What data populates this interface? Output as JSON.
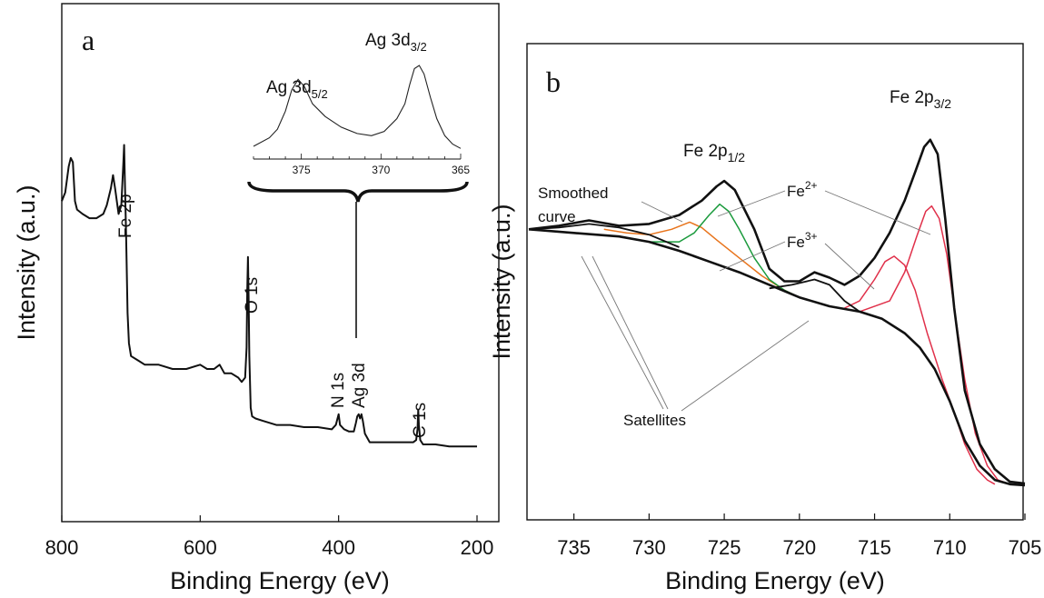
{
  "chart_data": [
    {
      "panel": "a",
      "type": "line",
      "xlabel": "Binding Energy (eV)",
      "ylabel": "Intensity (a.u.)",
      "xlim": [
        800,
        200
      ],
      "xticks": [
        "800",
        "600",
        "400",
        "200"
      ],
      "x_reversed": true,
      "grid": false,
      "series": [
        {
          "points": [
            [
              800,
              0.66
            ],
            [
              795,
              0.68
            ],
            [
              790,
              0.74
            ],
            [
              787,
              0.76
            ],
            [
              784,
              0.75
            ],
            [
              781,
              0.66
            ],
            [
              778,
              0.64
            ],
            [
              770,
              0.63
            ],
            [
              760,
              0.62
            ],
            [
              750,
              0.62
            ],
            [
              740,
              0.63
            ],
            [
              735,
              0.65
            ],
            [
              729,
              0.69
            ],
            [
              726,
              0.72
            ],
            [
              723,
              0.69
            ],
            [
              718,
              0.63
            ],
            [
              714,
              0.65
            ],
            [
              711,
              0.75
            ],
            [
              710,
              0.79
            ],
            [
              709,
              0.72
            ],
            [
              707,
              0.58
            ],
            [
              705,
              0.4
            ],
            [
              703,
              0.33
            ],
            [
              700,
              0.3
            ],
            [
              690,
              0.29
            ],
            [
              680,
              0.28
            ],
            [
              660,
              0.28
            ],
            [
              640,
              0.27
            ],
            [
              620,
              0.27
            ],
            [
              600,
              0.28
            ],
            [
              590,
              0.27
            ],
            [
              580,
              0.27
            ],
            [
              572,
              0.28
            ],
            [
              565,
              0.26
            ],
            [
              555,
              0.26
            ],
            [
              545,
              0.25
            ],
            [
              540,
              0.24
            ],
            [
              535,
              0.25
            ],
            [
              533,
              0.32
            ],
            [
              532,
              0.45
            ],
            [
              531,
              0.53
            ],
            [
              530,
              0.44
            ],
            [
              529,
              0.3
            ],
            [
              527,
              0.18
            ],
            [
              525,
              0.16
            ],
            [
              520,
              0.155
            ],
            [
              510,
              0.15
            ],
            [
              490,
              0.14
            ],
            [
              470,
              0.14
            ],
            [
              450,
              0.135
            ],
            [
              430,
              0.135
            ],
            [
              410,
              0.13
            ],
            [
              404,
              0.14
            ],
            [
              400,
              0.165
            ],
            [
              398,
              0.14
            ],
            [
              392,
              0.13
            ],
            [
              385,
              0.125
            ],
            [
              378,
              0.125
            ],
            [
              375,
              0.145
            ],
            [
              373,
              0.16
            ],
            [
              371,
              0.165
            ],
            [
              369,
              0.155
            ],
            [
              367,
              0.165
            ],
            [
              365,
              0.15
            ],
            [
              362,
              0.12
            ],
            [
              355,
              0.1
            ],
            [
              340,
              0.1
            ],
            [
              320,
              0.1
            ],
            [
              300,
              0.1
            ],
            [
              292,
              0.1
            ],
            [
              288,
              0.105
            ],
            [
              286,
              0.13
            ],
            [
              285,
              0.175
            ],
            [
              284,
              0.14
            ],
            [
              282,
              0.105
            ],
            [
              278,
              0.095
            ],
            [
              260,
              0.095
            ],
            [
              240,
              0.09
            ],
            [
              220,
              0.09
            ],
            [
              200,
              0.09
            ]
          ]
        }
      ],
      "annotations": [
        "Fe 2p",
        "O 1s",
        "N 1s",
        "Ag 3d",
        "C 1s"
      ],
      "inset": {
        "type": "line",
        "xlim": [
          378,
          365
        ],
        "xticks": [
          "375",
          "370",
          "365"
        ],
        "labels": [
          "Ag 3d 5/2",
          "Ag 3d 3/2"
        ],
        "points": [
          [
            378,
            0.12
          ],
          [
            377,
            0.2
          ],
          [
            376.5,
            0.28
          ],
          [
            376,
            0.45
          ],
          [
            375.6,
            0.65
          ],
          [
            375.2,
            0.75
          ],
          [
            374.8,
            0.68
          ],
          [
            374.3,
            0.52
          ],
          [
            373.5,
            0.4
          ],
          [
            372.5,
            0.3
          ],
          [
            371.5,
            0.24
          ],
          [
            370.6,
            0.22
          ],
          [
            369.8,
            0.26
          ],
          [
            369,
            0.38
          ],
          [
            368.5,
            0.52
          ],
          [
            368.2,
            0.7
          ],
          [
            367.9,
            0.85
          ],
          [
            367.6,
            0.88
          ],
          [
            367.3,
            0.8
          ],
          [
            366.9,
            0.58
          ],
          [
            366.5,
            0.38
          ],
          [
            366,
            0.22
          ],
          [
            365.5,
            0.14
          ],
          [
            365,
            0.1
          ]
        ]
      }
    },
    {
      "panel": "b",
      "type": "line",
      "xlabel": "Binding Energy (eV)",
      "ylabel": "Intensity (a.u.)",
      "xlim": [
        738,
        705
      ],
      "xticks": [
        "735",
        "730",
        "725",
        "720",
        "715",
        "710",
        "705"
      ],
      "x_reversed": true,
      "grid": false,
      "annotations": [
        "Fe 2p 1/2",
        "Fe 2p 3/2",
        "Smoothed curve",
        "Fe2+",
        "Fe3+",
        "Satellites"
      ],
      "series": [
        {
          "id": "smoothed",
          "color": "#111111",
          "points": [
            [
              738,
              0.72
            ],
            [
              736,
              0.73
            ],
            [
              734,
              0.745
            ],
            [
              732,
              0.73
            ],
            [
              730,
              0.735
            ],
            [
              728,
              0.76
            ],
            [
              726.5,
              0.8
            ],
            [
              725.5,
              0.84
            ],
            [
              725,
              0.855
            ],
            [
              724.3,
              0.83
            ],
            [
              723,
              0.72
            ],
            [
              722,
              0.61
            ],
            [
              721,
              0.575
            ],
            [
              720,
              0.575
            ],
            [
              719,
              0.6
            ],
            [
              718,
              0.585
            ],
            [
              717,
              0.565
            ],
            [
              716,
              0.59
            ],
            [
              715,
              0.64
            ],
            [
              714,
              0.71
            ],
            [
              713,
              0.8
            ],
            [
              712.3,
              0.88
            ],
            [
              711.7,
              0.95
            ],
            [
              711.3,
              0.97
            ],
            [
              710.8,
              0.93
            ],
            [
              710.3,
              0.75
            ],
            [
              709.7,
              0.5
            ],
            [
              709,
              0.27
            ],
            [
              708,
              0.12
            ],
            [
              707,
              0.05
            ],
            [
              706,
              0.015
            ],
            [
              705,
              0.01
            ]
          ]
        },
        {
          "id": "background",
          "color": "#111111",
          "points": [
            [
              738,
              0.72
            ],
            [
              735,
              0.71
            ],
            [
              732,
              0.7
            ],
            [
              730,
              0.685
            ],
            [
              728,
              0.66
            ],
            [
              726,
              0.63
            ],
            [
              724,
              0.6
            ],
            [
              722,
              0.565
            ],
            [
              720,
              0.53
            ],
            [
              718,
              0.505
            ],
            [
              716,
              0.49
            ],
            [
              714.5,
              0.47
            ],
            [
              713,
              0.43
            ],
            [
              712,
              0.39
            ],
            [
              711,
              0.33
            ],
            [
              710,
              0.24
            ],
            [
              709,
              0.13
            ],
            [
              708,
              0.06
            ],
            [
              707,
              0.02
            ],
            [
              706,
              0.008
            ],
            [
              705,
              0.005
            ]
          ]
        },
        {
          "id": "Fe2+",
          "color": "#1a9a3c",
          "points": [
            [
              730,
              0.685
            ],
            [
              728,
              0.685
            ],
            [
              727,
              0.71
            ],
            [
              726,
              0.76
            ],
            [
              725.3,
              0.79
            ],
            [
              724.7,
              0.77
            ],
            [
              724,
              0.72
            ],
            [
              723,
              0.64
            ],
            [
              722,
              0.58
            ],
            [
              721,
              0.55
            ],
            [
              720,
              0.53
            ]
          ]
        },
        {
          "id": "Fe3+",
          "color": "#e8741c",
          "points": [
            [
              733,
              0.72
            ],
            [
              731.5,
              0.71
            ],
            [
              730,
              0.705
            ],
            [
              728.5,
              0.72
            ],
            [
              727.3,
              0.74
            ],
            [
              726.5,
              0.725
            ],
            [
              725.5,
              0.69
            ],
            [
              724,
              0.64
            ],
            [
              722.5,
              0.59
            ],
            [
              721,
              0.55
            ],
            [
              720,
              0.53
            ]
          ]
        },
        {
          "id": "Fe2+ (2p3/2)",
          "color": "#e0304a",
          "points": [
            [
              716,
              0.49
            ],
            [
              714,
              0.52
            ],
            [
              713,
              0.6
            ],
            [
              712.2,
              0.7
            ],
            [
              711.6,
              0.77
            ],
            [
              711.2,
              0.785
            ],
            [
              710.7,
              0.75
            ],
            [
              710.2,
              0.65
            ],
            [
              709.6,
              0.47
            ],
            [
              709,
              0.3
            ],
            [
              708.3,
              0.15
            ],
            [
              707.5,
              0.06
            ],
            [
              706.8,
              0.02
            ],
            [
              706,
              0.008
            ]
          ]
        },
        {
          "id": "Fe3+ (2p3/2)",
          "color": "#e0304a",
          "points": [
            [
              717,
              0.5
            ],
            [
              716,
              0.52
            ],
            [
              715,
              0.58
            ],
            [
              714.3,
              0.63
            ],
            [
              713.7,
              0.645
            ],
            [
              713,
              0.62
            ],
            [
              712.3,
              0.55
            ],
            [
              711.5,
              0.43
            ],
            [
              710.5,
              0.3
            ],
            [
              709.8,
              0.22
            ],
            [
              709,
              0.12
            ],
            [
              708.2,
              0.05
            ],
            [
              707.5,
              0.02
            ],
            [
              707,
              0.008
            ]
          ]
        },
        {
          "id": "satellite-1",
          "color": "#111111",
          "points": [
            [
              738,
              0.72
            ],
            [
              736,
              0.725
            ],
            [
              734,
              0.735
            ],
            [
              732,
              0.725
            ],
            [
              730,
              0.705
            ],
            [
              728,
              0.67
            ]
          ]
        },
        {
          "id": "satellite-2",
          "color": "#111111",
          "points": [
            [
              722,
              0.555
            ],
            [
              720.5,
              0.565
            ],
            [
              719,
              0.58
            ],
            [
              718,
              0.565
            ],
            [
              717,
              0.52
            ],
            [
              716,
              0.49
            ]
          ]
        }
      ]
    }
  ],
  "text": {
    "panel_a_letter": "a",
    "panel_b_letter": "b",
    "fe2p": "Fe 2p",
    "o1s": "O 1s",
    "n1s": "N 1s",
    "ag3d": "Ag 3d",
    "c1s": "C 1s",
    "ag52_main": "Ag 3d",
    "ag52_sub": "5/2",
    "ag32_main": "Ag 3d",
    "ag32_sub": "3/2",
    "fe2p12_main": "Fe 2p",
    "fe2p12_sub": "1/2",
    "fe2p32_main": "Fe 2p",
    "fe2p32_sub": "3/2",
    "smoothed1": "Smoothed",
    "smoothed2": "curve",
    "fe2plus_main": "Fe",
    "fe2plus_sup": "2+",
    "fe3plus_main": "Fe",
    "fe3plus_sup": "3+",
    "satellites": "Satellites",
    "xlabel_a": "Binding Energy (eV)",
    "xlabel_b": "Binding Energy (eV)",
    "ylabel_a": "Intensity (a.u.)",
    "ylabel_b": "Intensity (a.u.)"
  }
}
